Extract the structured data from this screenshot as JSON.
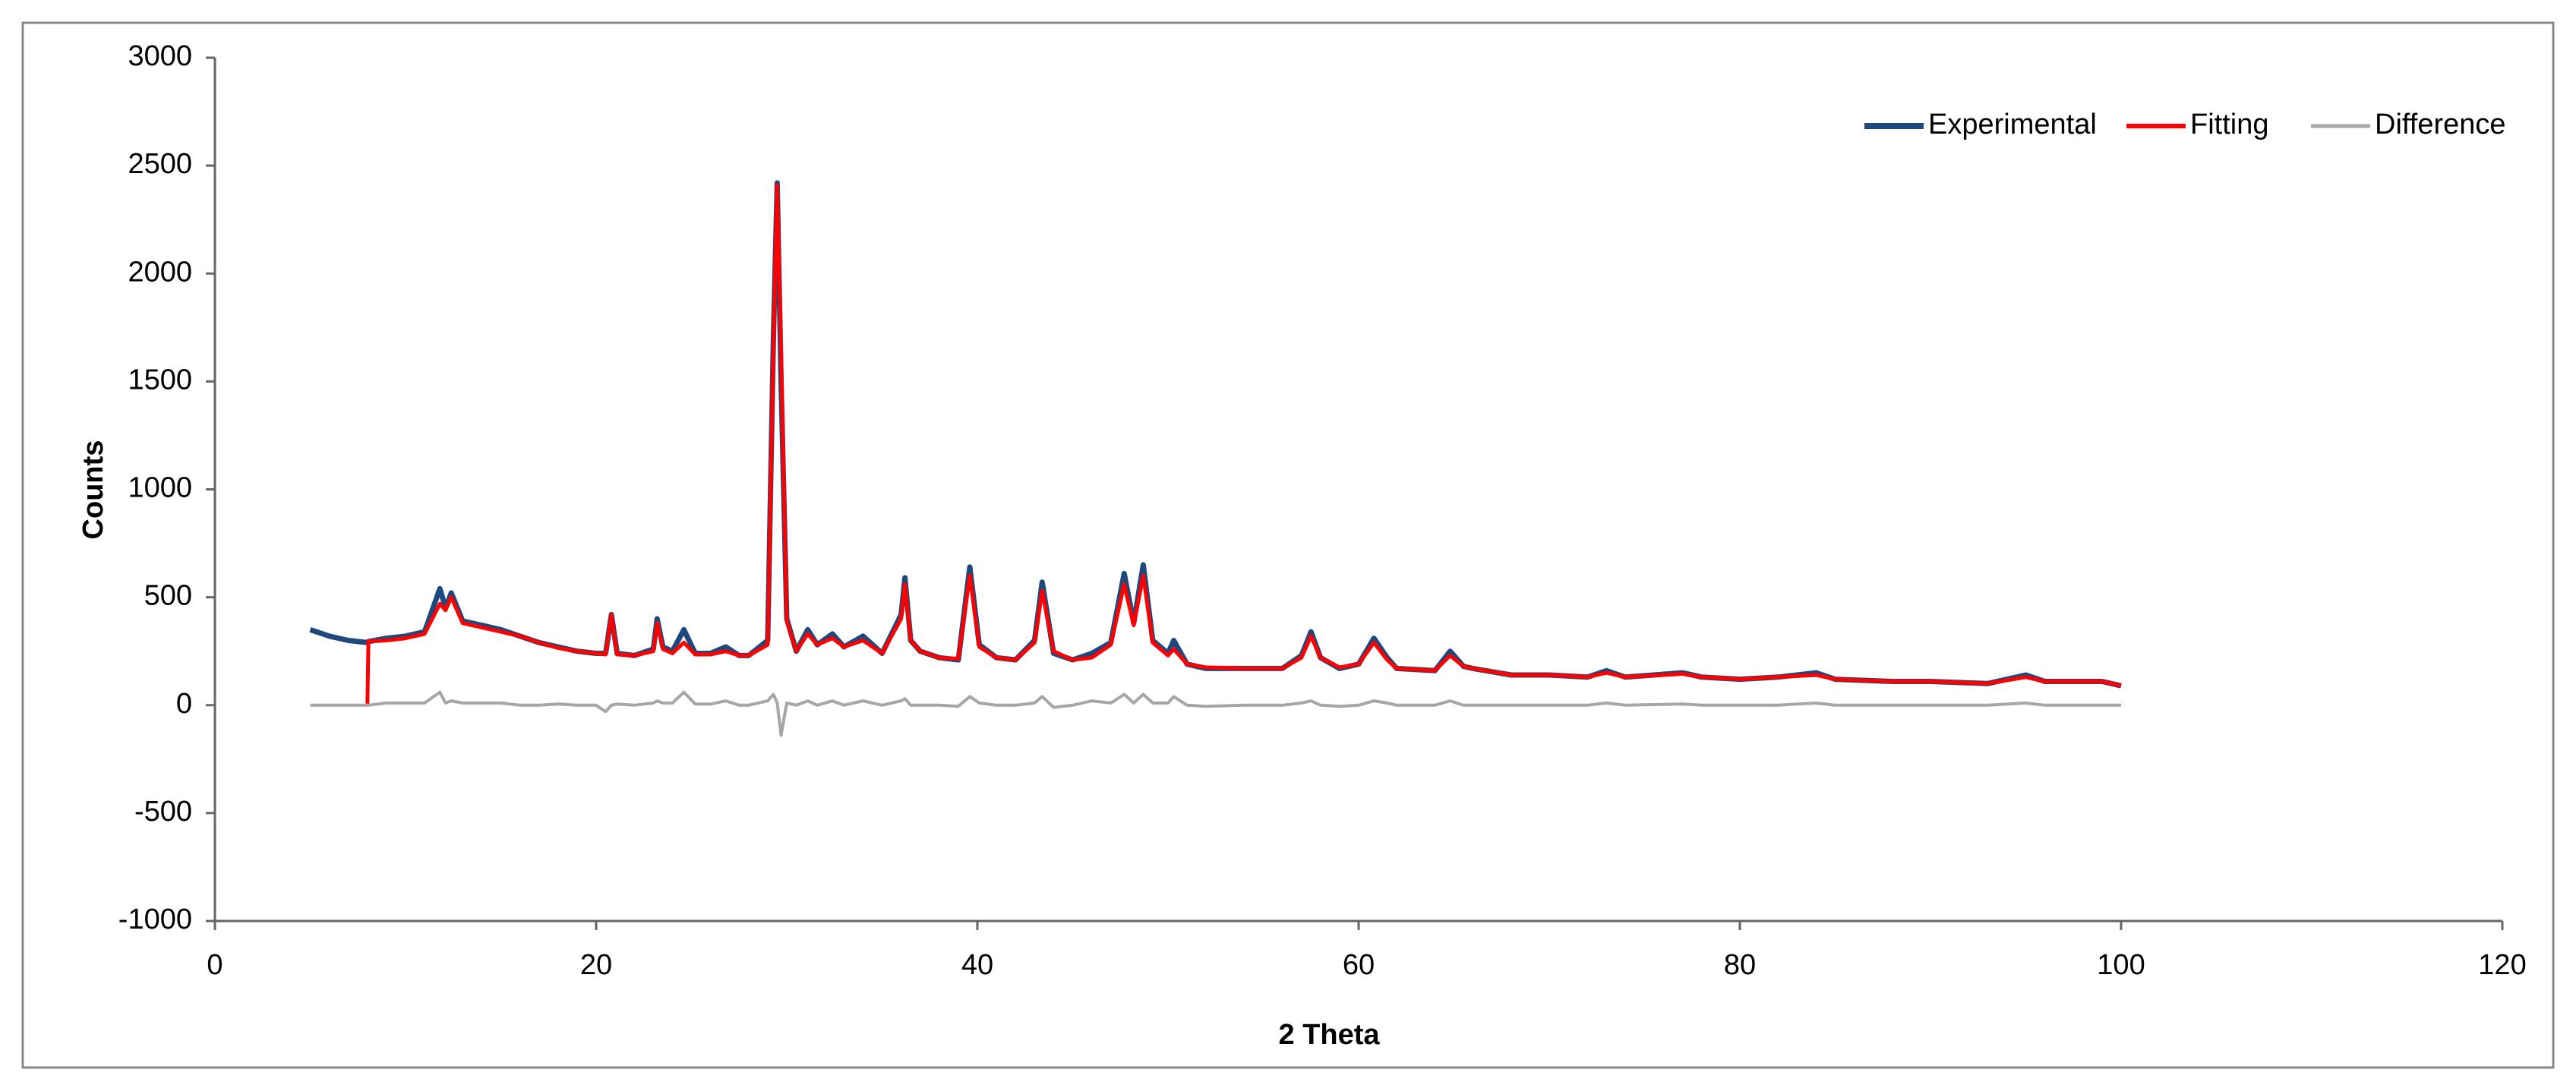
{
  "chart_data": {
    "type": "line",
    "xlabel": "2 Theta",
    "ylabel": "Counts",
    "xlim": [
      0,
      120
    ],
    "xticks": [
      0,
      20,
      40,
      60,
      80,
      100,
      120
    ],
    "ylim": [
      -1000,
      3000
    ],
    "yticks": [
      -1000,
      -500,
      0,
      500,
      1000,
      1500,
      2000,
      2500,
      3000
    ],
    "legend": "upper right",
    "x": [
      5,
      6,
      7,
      8,
      8.05,
      9,
      10,
      11,
      11.8,
      12.1,
      12.4,
      13,
      14,
      15,
      16,
      17,
      18,
      19,
      20,
      20.5,
      20.8,
      21.1,
      22,
      23,
      23.2,
      23.5,
      24,
      24.6,
      25.2,
      26,
      26.8,
      27.5,
      28,
      29,
      29.3,
      29.5,
      29.7,
      30,
      30.5,
      31.1,
      31.6,
      32.4,
      33,
      34,
      35,
      36,
      36.2,
      36.5,
      37,
      38,
      39,
      39.6,
      40.1,
      41,
      42,
      43,
      43.4,
      44,
      45,
      46,
      47,
      47.7,
      48.2,
      48.7,
      49.2,
      50,
      50.3,
      51,
      52,
      54,
      56,
      57,
      57.5,
      58,
      59,
      60,
      60.8,
      61.5,
      62,
      64,
      64.8,
      65.5,
      66,
      68,
      70,
      72,
      73,
      74,
      77,
      78,
      80,
      82,
      84,
      85,
      88,
      90,
      93,
      95,
      96,
      99,
      100
    ],
    "series": [
      {
        "name": "Experimental",
        "color": "#1f497d",
        "values": [
          350,
          320,
          300,
          290,
          295,
          310,
          320,
          340,
          540,
          450,
          520,
          390,
          370,
          350,
          320,
          290,
          270,
          250,
          240,
          240,
          420,
          240,
          230,
          260,
          400,
          270,
          250,
          350,
          240,
          240,
          270,
          230,
          230,
          300,
          1700,
          2420,
          1500,
          400,
          250,
          350,
          280,
          330,
          270,
          320,
          240,
          420,
          590,
          300,
          250,
          220,
          210,
          640,
          280,
          220,
          210,
          300,
          570,
          240,
          210,
          240,
          290,
          610,
          380,
          650,
          300,
          240,
          300,
          190,
          170,
          170,
          170,
          230,
          340,
          220,
          170,
          190,
          310,
          220,
          170,
          160,
          250,
          180,
          170,
          140,
          140,
          130,
          160,
          130,
          150,
          130,
          120,
          130,
          150,
          120,
          110,
          110,
          100,
          140,
          110,
          110,
          90
        ]
      },
      {
        "name": "Fitting",
        "color": "#ff0000",
        "values": [
          null,
          null,
          null,
          0,
          295,
          300,
          310,
          330,
          470,
          440,
          500,
          380,
          360,
          340,
          320,
          290,
          265,
          250,
          240,
          235,
          420,
          235,
          230,
          250,
          380,
          260,
          240,
          290,
          235,
          235,
          250,
          230,
          230,
          280,
          1650,
          2410,
          1640,
          390,
          250,
          330,
          280,
          310,
          270,
          300,
          240,
          400,
          560,
          300,
          250,
          220,
          215,
          600,
          270,
          220,
          210,
          290,
          530,
          250,
          210,
          220,
          280,
          560,
          370,
          600,
          290,
          230,
          260,
          190,
          175,
          170,
          170,
          220,
          320,
          220,
          175,
          190,
          290,
          210,
          170,
          160,
          230,
          180,
          170,
          140,
          140,
          130,
          150,
          130,
          145,
          130,
          120,
          130,
          140,
          120,
          110,
          110,
          100,
          130,
          110,
          110,
          90
        ]
      },
      {
        "name": "Difference",
        "color": "#a6a6a6",
        "values": [
          0,
          0,
          0,
          0,
          0,
          10,
          10,
          10,
          60,
          10,
          20,
          10,
          10,
          10,
          0,
          0,
          5,
          0,
          0,
          -30,
          0,
          5,
          0,
          10,
          20,
          10,
          10,
          60,
          5,
          5,
          20,
          0,
          0,
          20,
          50,
          10,
          -140,
          10,
          0,
          20,
          0,
          20,
          0,
          20,
          0,
          20,
          30,
          0,
          0,
          0,
          -5,
          40,
          10,
          0,
          0,
          10,
          40,
          -10,
          0,
          20,
          10,
          50,
          10,
          50,
          10,
          10,
          40,
          0,
          -5,
          0,
          0,
          10,
          20,
          0,
          -5,
          0,
          20,
          10,
          0,
          0,
          20,
          0,
          0,
          0,
          0,
          0,
          10,
          0,
          5,
          0,
          0,
          0,
          10,
          0,
          0,
          0,
          0,
          10,
          0,
          0,
          0
        ]
      }
    ]
  }
}
